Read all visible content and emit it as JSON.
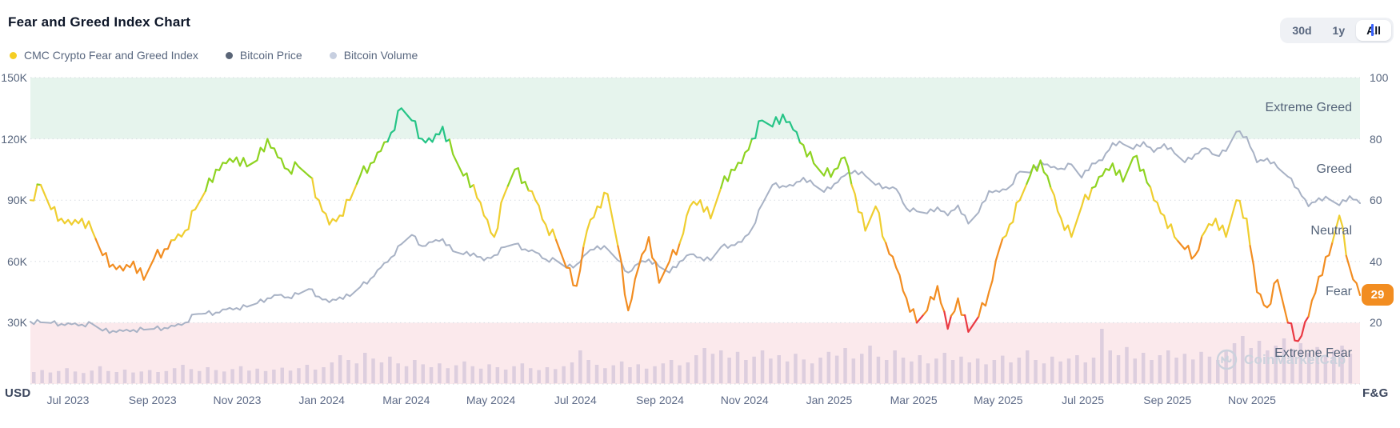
{
  "header": {
    "title": "Fear and Greed Index Chart",
    "legend": [
      {
        "label": "CMC Crypto Fear and Greed Index",
        "color": "#f5ce24"
      },
      {
        "label": "Bitcoin Price",
        "color": "#5a6577"
      },
      {
        "label": "Bitcoin Volume",
        "color": "#c7cfe0"
      }
    ],
    "range_buttons": [
      {
        "label": "30d",
        "active": false
      },
      {
        "label": "1y",
        "active": false
      },
      {
        "label": "All",
        "active": true
      }
    ]
  },
  "chart_data": {
    "type": "line",
    "title": "Fear and Greed Index Chart",
    "watermark": "CoinMarketCap",
    "x_labels": [
      "Jul 2023",
      "Sep 2023",
      "Nov 2023",
      "Jan 2024",
      "Mar 2024",
      "May 2024",
      "Jul 2024",
      "Sep 2024",
      "Nov 2024",
      "Jan 2025",
      "Mar 2025",
      "May 2025",
      "Jul 2025",
      "Sep 2025",
      "Nov 2025"
    ],
    "left_axis": {
      "title": "USD",
      "ticks": [
        "150K",
        "120K",
        "90K",
        "60K",
        "30K"
      ],
      "tick_values": [
        150,
        120,
        90,
        60,
        30
      ],
      "max_k": 150,
      "grid": "dotted"
    },
    "right_axis": {
      "title": "F&G",
      "ticks": [
        "100",
        "80",
        "60",
        "40",
        "20"
      ],
      "tick_values": [
        100,
        80,
        60,
        40,
        20
      ],
      "max": 100
    },
    "zones": [
      {
        "label": "Extreme Greed",
        "range": [
          80,
          100
        ],
        "band": "#e6f4ed"
      },
      {
        "label": "Greed",
        "range": [
          60,
          80
        ],
        "band": null
      },
      {
        "label": "Neutral",
        "range": [
          40,
          60
        ],
        "band": null
      },
      {
        "label": "Fear",
        "range": [
          20,
          40
        ],
        "band": null
      },
      {
        "label": "Extreme Fear",
        "range": [
          0,
          20
        ],
        "band": "#fbe9ec"
      }
    ],
    "current_value": 29,
    "fg_color_stops": [
      {
        "max": 22,
        "color": "#ea3943"
      },
      {
        "max": 46,
        "color": "#f28d21"
      },
      {
        "max": 64,
        "color": "#efce30"
      },
      {
        "max": 79,
        "color": "#8ed321"
      },
      {
        "max": 101,
        "color": "#25c486"
      }
    ],
    "series": [
      {
        "name": "CMC Crypto Fear and Greed Index",
        "axis": "right",
        "type": "line",
        "values": [
          60,
          65,
          57,
          54,
          52,
          54,
          50,
          42,
          39,
          37,
          40,
          34,
          41,
          44,
          47,
          50,
          57,
          63,
          70,
          72,
          74,
          71,
          73,
          80,
          74,
          70,
          71,
          68,
          60,
          52,
          55,
          60,
          68,
          72,
          76,
          82,
          90,
          86,
          80,
          79,
          84,
          75,
          68,
          65,
          55,
          48,
          62,
          70,
          66,
          60,
          52,
          47,
          38,
          32,
          50,
          58,
          62,
          45,
          24,
          38,
          48,
          33,
          40,
          46,
          58,
          60,
          54,
          64,
          70,
          72,
          80,
          86,
          84,
          88,
          83,
          78,
          72,
          68,
          70,
          74,
          62,
          50,
          58,
          46,
          38,
          28,
          20,
          24,
          32,
          18,
          28,
          17,
          22,
          30,
          44,
          52,
          60,
          68,
          73,
          64,
          54,
          48,
          58,
          64,
          68,
          72,
          66,
          74,
          70,
          60,
          55,
          48,
          44,
          42,
          50,
          54,
          48,
          60,
          54,
          30,
          25,
          34,
          20,
          14,
          22,
          35,
          42,
          55,
          38,
          29
        ]
      },
      {
        "name": "Bitcoin Price",
        "axis": "left",
        "type": "line",
        "color": "#a8b2c5",
        "unit": "K USD",
        "values": [
          30.5,
          30.2,
          29.9,
          29.4,
          29.2,
          29.1,
          29.4,
          26.1,
          26.0,
          25.9,
          26.5,
          26.6,
          27.0,
          27.5,
          28.3,
          30.0,
          34.2,
          34.5,
          35.0,
          36.5,
          37.2,
          37.8,
          39.5,
          42.0,
          43.5,
          42.5,
          44.0,
          46.5,
          42.8,
          40.0,
          42.5,
          43.0,
          47.5,
          51.5,
          57.0,
          62.0,
          68.5,
          73.0,
          67.5,
          69.5,
          71.0,
          65.0,
          63.5,
          64.0,
          60.5,
          63.0,
          67.0,
          68.5,
          66.0,
          64.5,
          61.0,
          60.5,
          57.0,
          58.5,
          64.0,
          67.5,
          66.0,
          60.5,
          54.5,
          59.0,
          61.0,
          57.5,
          54.5,
          60.0,
          63.5,
          62.0,
          60.5,
          67.0,
          68.0,
          69.5,
          76.0,
          88.0,
          97.5,
          97.0,
          97.0,
          101.0,
          97.5,
          94.0,
          98.0,
          102.0,
          104.5,
          102.0,
          97.5,
          96.5,
          95.5,
          86.0,
          84.5,
          83.5,
          86.5,
          82.5,
          87.5,
          78.5,
          84.0,
          94.5,
          94.0,
          96.5,
          104.0,
          103.5,
          109.0,
          106.0,
          105.5,
          107.5,
          101.0,
          108.0,
          109.5,
          118.0,
          117.5,
          115.0,
          118.5,
          113.5,
          117.5,
          113.0,
          108.5,
          112.5,
          115.5,
          112.0,
          114.0,
          123.5,
          121.0,
          108.5,
          110.5,
          106.0,
          101.5,
          95.5,
          87.0,
          91.0,
          90.5,
          87.5,
          92.0,
          88.5
        ]
      },
      {
        "name": "Bitcoin Volume",
        "axis": "left",
        "type": "bar",
        "color": "#b9aecf",
        "values_relative": [
          0.1,
          0.14,
          0.09,
          0.12,
          0.18,
          0.11,
          0.08,
          0.13,
          0.22,
          0.12,
          0.1,
          0.15,
          0.09,
          0.11,
          0.14,
          0.1,
          0.12,
          0.18,
          0.25,
          0.16,
          0.12,
          0.2,
          0.14,
          0.11,
          0.16,
          0.22,
          0.13,
          0.17,
          0.12,
          0.15,
          0.19,
          0.13,
          0.18,
          0.25,
          0.15,
          0.2,
          0.3,
          0.45,
          0.35,
          0.28,
          0.5,
          0.38,
          0.3,
          0.42,
          0.28,
          0.22,
          0.35,
          0.26,
          0.2,
          0.28,
          0.18,
          0.24,
          0.32,
          0.22,
          0.17,
          0.26,
          0.2,
          0.15,
          0.22,
          0.28,
          0.18,
          0.14,
          0.2,
          0.16,
          0.22,
          0.3,
          0.55,
          0.35,
          0.25,
          0.18,
          0.24,
          0.32,
          0.2,
          0.26,
          0.17,
          0.22,
          0.28,
          0.35,
          0.24,
          0.3,
          0.45,
          0.6,
          0.48,
          0.55,
          0.4,
          0.52,
          0.35,
          0.42,
          0.55,
          0.38,
          0.45,
          0.32,
          0.48,
          0.36,
          0.28,
          0.4,
          0.52,
          0.44,
          0.6,
          0.38,
          0.48,
          0.65,
          0.42,
          0.35,
          0.55,
          0.4,
          0.32,
          0.45,
          0.28,
          0.38,
          0.5,
          0.35,
          0.42,
          0.3,
          0.38,
          0.26,
          0.35,
          0.44,
          0.3,
          0.4,
          0.55,
          0.35,
          0.28,
          0.42,
          0.32,
          0.38,
          0.45,
          0.3,
          0.4,
          1.0,
          0.55,
          0.45,
          0.62,
          0.38,
          0.5,
          0.35,
          0.45,
          0.55,
          0.4,
          0.48,
          0.36,
          0.52,
          0.42,
          0.35,
          0.55,
          0.7,
          0.85,
          0.6,
          0.75,
          0.55,
          0.65,
          0.8,
          0.58,
          0.7,
          0.5,
          0.62,
          0.45,
          0.55,
          0.65,
          0.48
        ]
      }
    ]
  }
}
